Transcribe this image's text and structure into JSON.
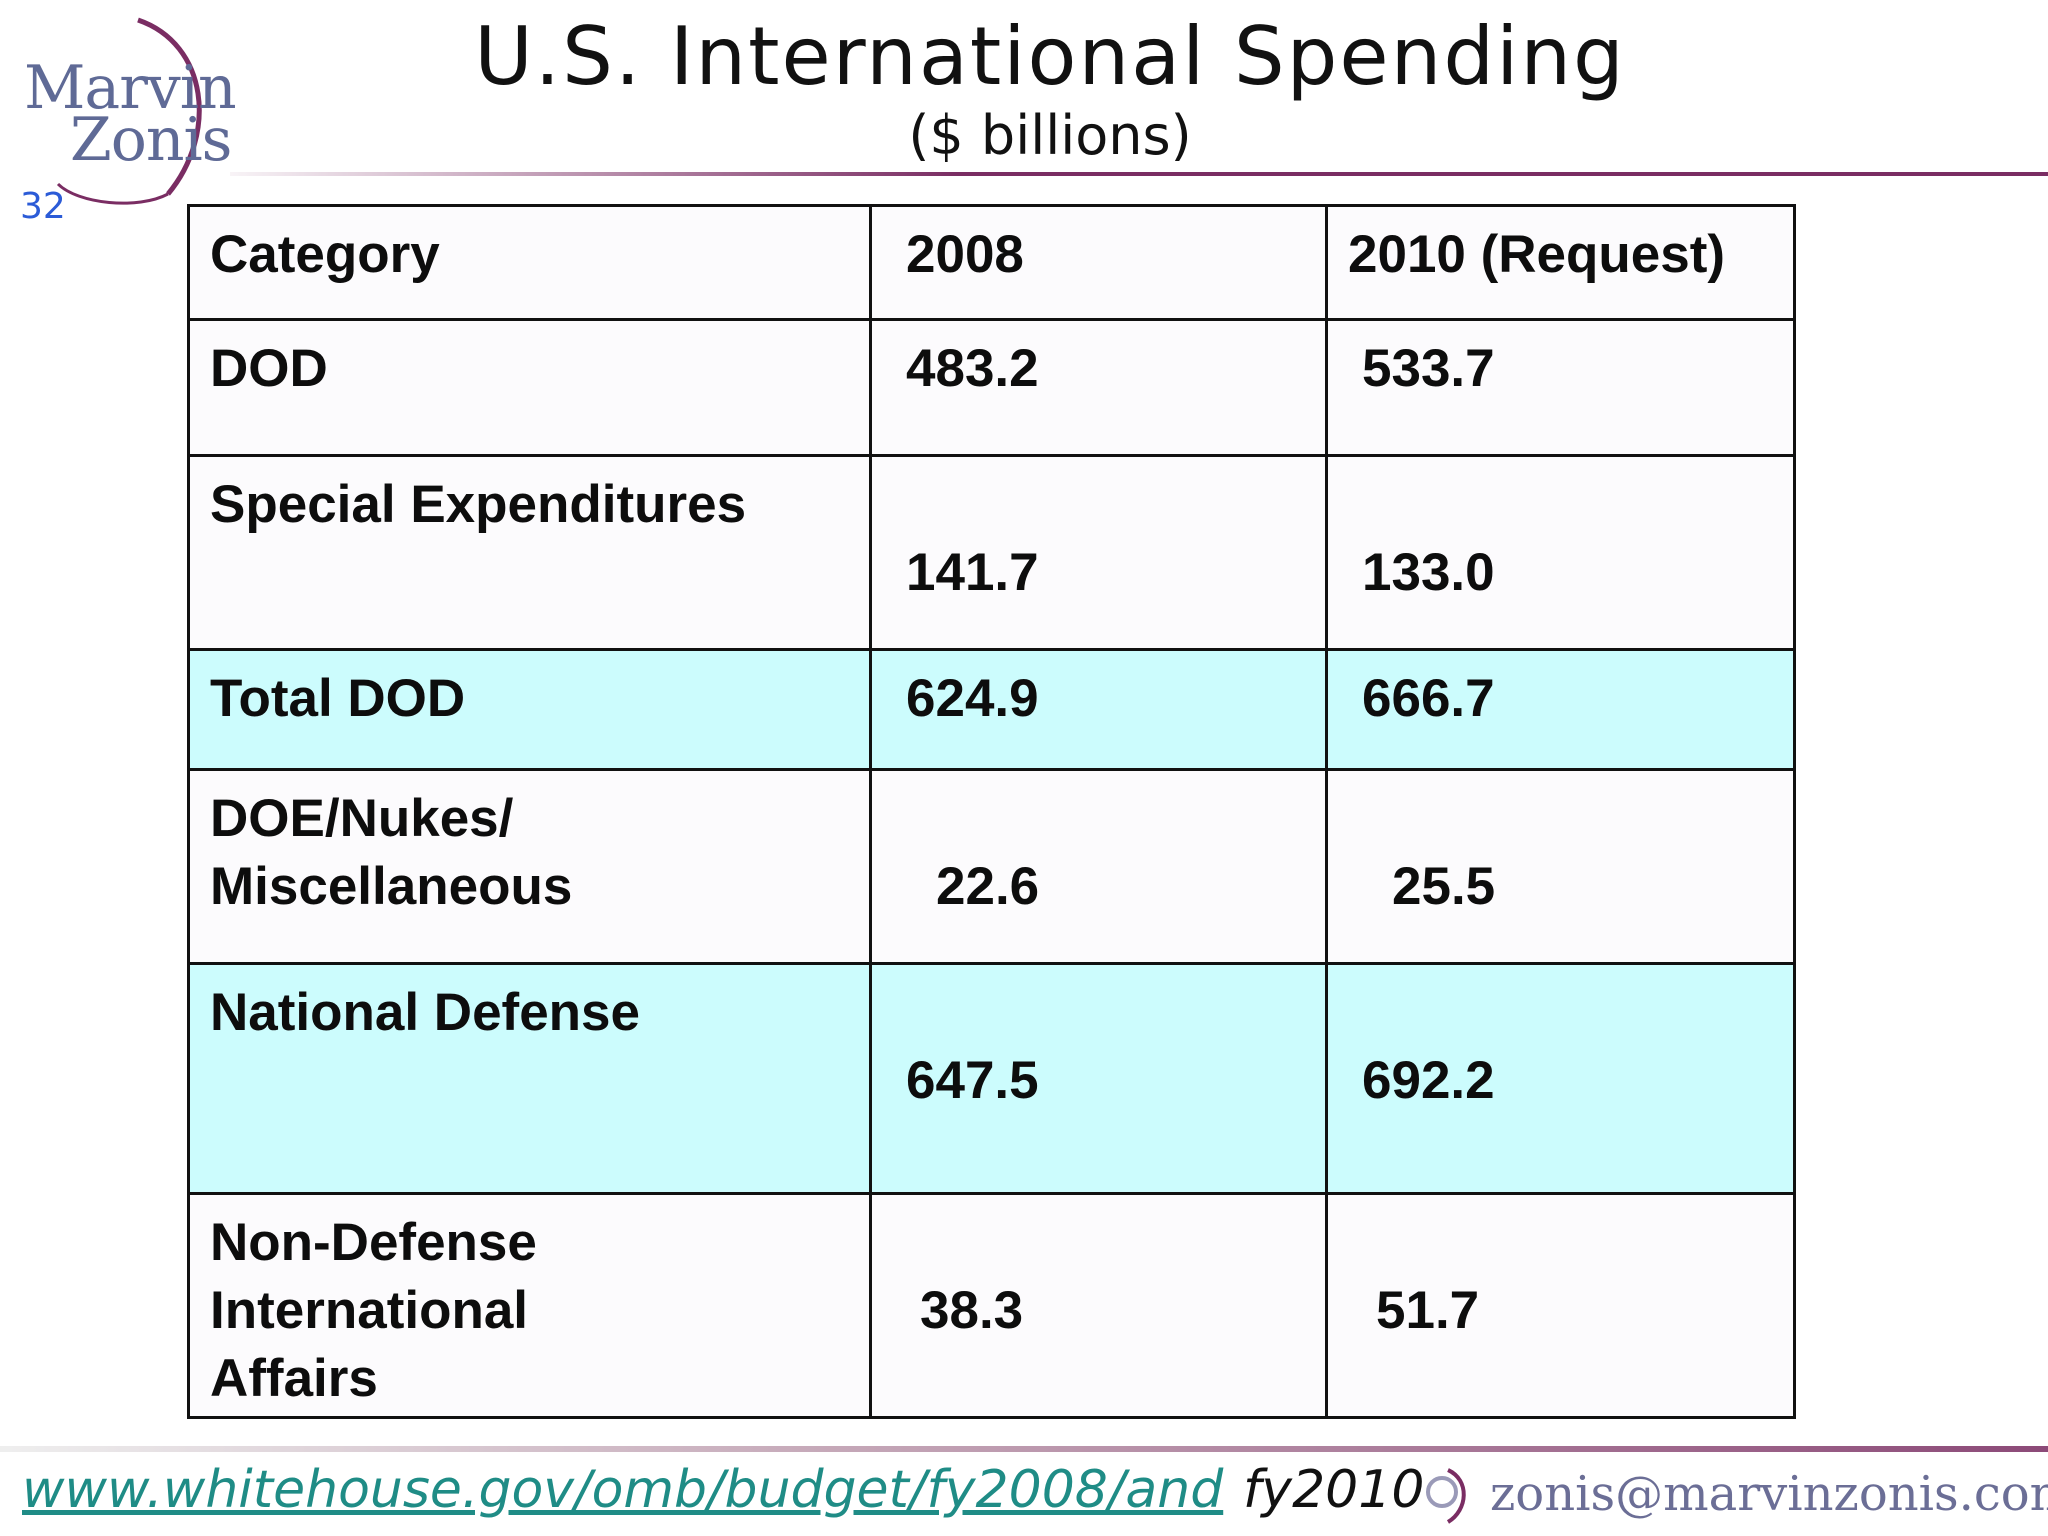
{
  "header": {
    "logo_line1": "Marvin",
    "logo_line2": "Zonis",
    "slide_number": "32",
    "title": "U.S. International Spending",
    "subtitle": "($ billions)"
  },
  "table": {
    "headers": [
      "Category",
      "2008",
      "2010 (Request)"
    ],
    "rows": [
      {
        "category": "DOD",
        "y2008": "483.2",
        "y2010": "533.7"
      },
      {
        "category": "Special Expenditures",
        "y2008": "141.7",
        "y2010": "133.0"
      },
      {
        "category": "Total DOD",
        "y2008": "624.9",
        "y2010": "666.7"
      },
      {
        "category": "DOE/Nukes/ Miscellaneous",
        "y2008": "22.6",
        "y2010": "25.5"
      },
      {
        "category": "National Defense",
        "y2008": "647.5",
        "y2010": "692.2"
      },
      {
        "category": "Non-Defense International Affairs",
        "y2008": "38.3",
        "y2010": "51.7"
      }
    ]
  },
  "footer": {
    "link": "www.whitehouse.gov/omb/budget/fy2008/and",
    "link_tail": "fy2010",
    "email": "zonis@marvinzonis.com"
  },
  "colors": {
    "highlight": "#ccfcfd",
    "rule": "#7a2d63",
    "link": "#1f8c86",
    "logo": "#5f6a96"
  }
}
